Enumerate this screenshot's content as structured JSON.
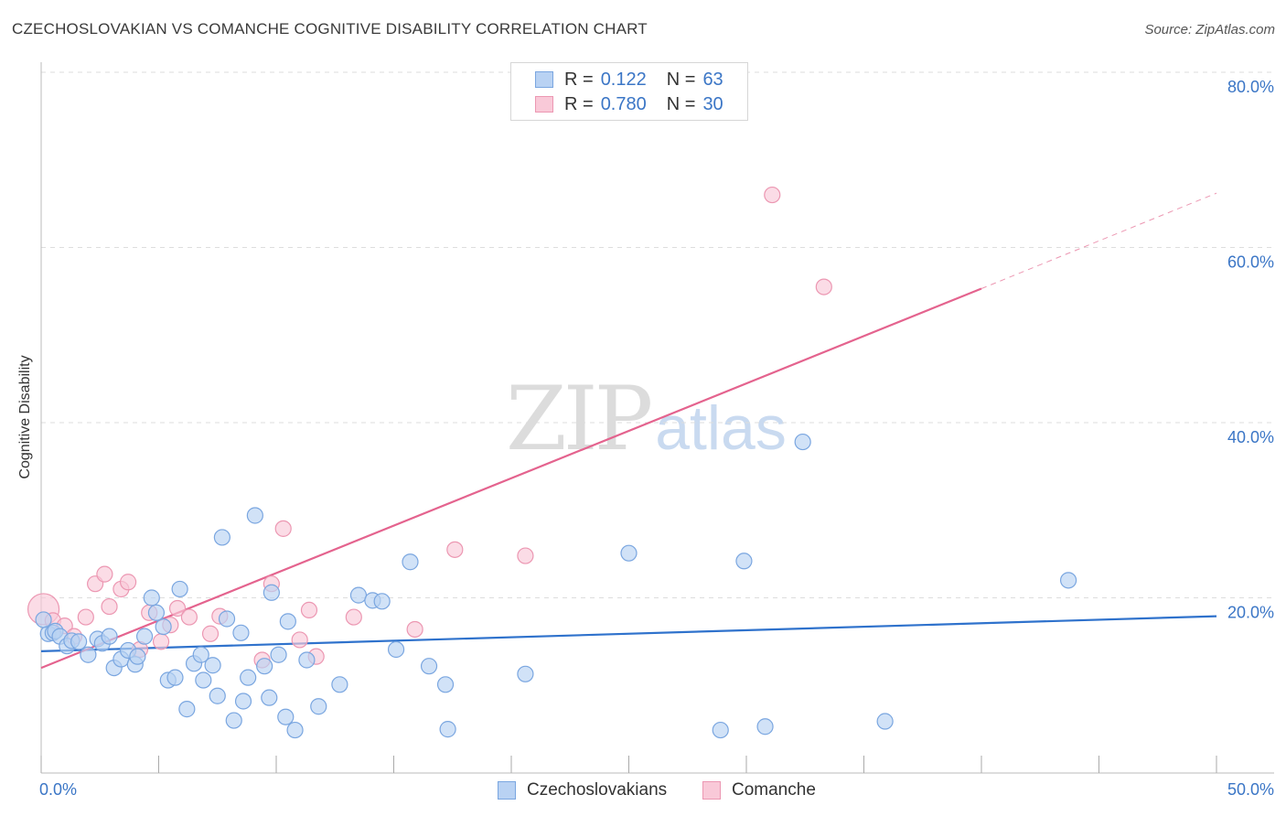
{
  "header": {
    "title": "CZECHOSLOVAKIAN VS COMANCHE COGNITIVE DISABILITY CORRELATION CHART",
    "source": "Source: ZipAtlas.com"
  },
  "legend": {
    "rows": [
      {
        "r_label": "R =",
        "r_value": "0.122",
        "n_label": "N =",
        "n_value": "63"
      },
      {
        "r_label": "R =",
        "r_value": "0.780",
        "n_label": "N =",
        "n_value": "30"
      }
    ]
  },
  "watermark": {
    "zip": "ZIP",
    "atlas": "atlas"
  },
  "colors": {
    "blue_fill": "#b9d2f3",
    "blue_stroke": "#7aa6e0",
    "blue_line": "#2f72cc",
    "pink_fill": "#f9c9d8",
    "pink_stroke": "#ec97b2",
    "pink_line": "#e4638e",
    "grid": "#dddddd",
    "tick_text": "#3b76c6"
  },
  "chart_data": {
    "type": "scatter",
    "title": "CZECHOSLOVAKIAN VS COMANCHE COGNITIVE DISABILITY CORRELATION CHART",
    "ylabel": "Cognitive Disability",
    "xlim": [
      0,
      50
    ],
    "ylim": [
      0,
      80
    ],
    "x_tick_labels": [
      "0.0%",
      "50.0%"
    ],
    "y_ticks": [
      20,
      40,
      60,
      80
    ],
    "y_tick_labels": [
      "20.0%",
      "40.0%",
      "60.0%",
      "80.0%"
    ],
    "grid": "horizontal dashed",
    "legend_position": "bottom",
    "series": [
      {
        "name": "Czechoslovakians",
        "r": 0.122,
        "n": 63,
        "trend": {
          "x0": 0,
          "y0": 13.9,
          "x1": 50,
          "y1": 17.9
        },
        "points": [
          [
            0.3,
            15.9
          ],
          [
            0.5,
            16.0
          ],
          [
            0.6,
            16.2
          ],
          [
            0.8,
            15.6
          ],
          [
            1.1,
            14.5
          ],
          [
            1.3,
            15.1
          ],
          [
            1.6,
            15.0
          ],
          [
            2.0,
            13.5
          ],
          [
            2.4,
            15.3
          ],
          [
            2.6,
            14.8
          ],
          [
            2.9,
            15.6
          ],
          [
            3.1,
            12.0
          ],
          [
            3.4,
            13.0
          ],
          [
            3.7,
            14.0
          ],
          [
            4.0,
            12.4
          ],
          [
            4.1,
            13.3
          ],
          [
            4.4,
            15.6
          ],
          [
            4.7,
            20.0
          ],
          [
            4.9,
            18.3
          ],
          [
            5.2,
            16.7
          ],
          [
            5.4,
            10.6
          ],
          [
            5.7,
            10.9
          ],
          [
            5.9,
            21.0
          ],
          [
            6.2,
            7.3
          ],
          [
            6.5,
            12.5
          ],
          [
            6.8,
            13.5
          ],
          [
            6.9,
            10.6
          ],
          [
            7.3,
            12.3
          ],
          [
            7.5,
            8.8
          ],
          [
            7.7,
            26.9
          ],
          [
            7.9,
            17.6
          ],
          [
            8.2,
            6.0
          ],
          [
            8.5,
            16.0
          ],
          [
            8.6,
            8.2
          ],
          [
            8.8,
            10.9
          ],
          [
            9.1,
            29.4
          ],
          [
            9.5,
            12.2
          ],
          [
            9.7,
            8.6
          ],
          [
            9.8,
            20.6
          ],
          [
            10.1,
            13.5
          ],
          [
            10.4,
            6.4
          ],
          [
            10.5,
            17.3
          ],
          [
            10.8,
            4.9
          ],
          [
            11.3,
            12.9
          ],
          [
            11.8,
            7.6
          ],
          [
            12.7,
            10.1
          ],
          [
            13.5,
            20.3
          ],
          [
            14.1,
            19.7
          ],
          [
            14.5,
            19.6
          ],
          [
            15.1,
            14.1
          ],
          [
            15.7,
            24.1
          ],
          [
            16.5,
            12.2
          ],
          [
            17.2,
            10.1
          ],
          [
            17.3,
            5.0
          ],
          [
            20.6,
            11.3
          ],
          [
            25.0,
            25.1
          ],
          [
            28.9,
            4.9
          ],
          [
            29.9,
            24.2
          ],
          [
            30.8,
            5.3
          ],
          [
            32.4,
            37.8
          ],
          [
            35.9,
            5.9
          ],
          [
            43.7,
            22.0
          ],
          [
            0.1,
            17.5
          ]
        ]
      },
      {
        "name": "Comanche",
        "r": 0.78,
        "n": 30,
        "trend": {
          "x0": 0,
          "y0": 12.0,
          "x1": 40,
          "y1": 55.3,
          "x_dash_end": 50,
          "y_dash_end": 66.2
        },
        "points": [
          [
            0.1,
            18.7
          ],
          [
            0.5,
            17.4
          ],
          [
            1.0,
            16.8
          ],
          [
            1.4,
            15.6
          ],
          [
            1.9,
            17.8
          ],
          [
            2.3,
            21.6
          ],
          [
            2.7,
            22.7
          ],
          [
            2.9,
            19.0
          ],
          [
            3.4,
            21.0
          ],
          [
            3.7,
            21.8
          ],
          [
            4.2,
            14.1
          ],
          [
            4.6,
            18.3
          ],
          [
            5.1,
            15.0
          ],
          [
            5.5,
            16.9
          ],
          [
            5.8,
            18.8
          ],
          [
            6.3,
            17.8
          ],
          [
            7.2,
            15.9
          ],
          [
            7.6,
            17.9
          ],
          [
            9.4,
            12.9
          ],
          [
            9.8,
            21.6
          ],
          [
            10.3,
            27.9
          ],
          [
            11.0,
            15.2
          ],
          [
            11.4,
            18.6
          ],
          [
            11.7,
            13.3
          ],
          [
            13.3,
            17.8
          ],
          [
            15.9,
            16.4
          ],
          [
            17.6,
            25.5
          ],
          [
            20.6,
            24.8
          ],
          [
            31.1,
            66.0
          ],
          [
            33.3,
            55.5
          ]
        ]
      }
    ]
  }
}
